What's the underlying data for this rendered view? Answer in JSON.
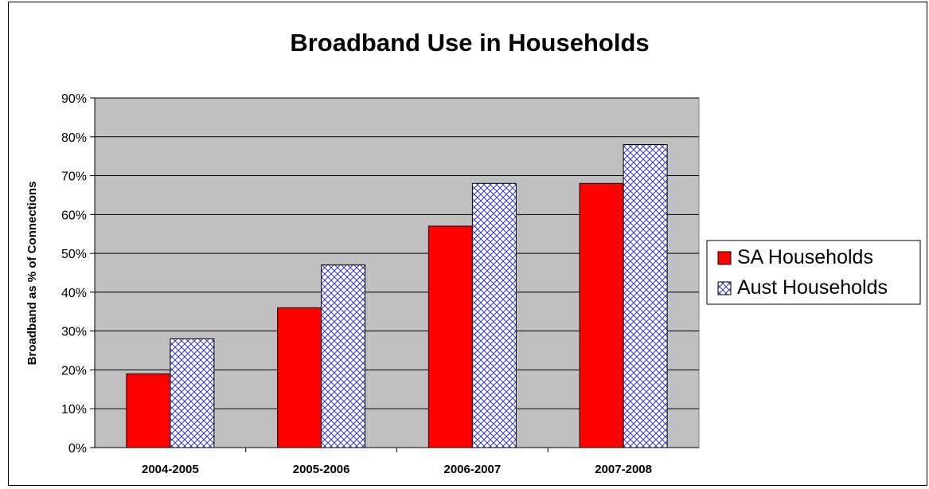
{
  "chart_data": {
    "type": "bar",
    "title": "Broadband Use in Households",
    "xlabel": "",
    "ylabel": "Broadband as % of Connections",
    "categories": [
      "2004-2005",
      "2005-2006",
      "2006-2007",
      "2007-2008"
    ],
    "series": [
      {
        "name": "SA Households",
        "values": [
          19,
          36,
          57,
          68
        ],
        "color": "#ff0000",
        "fill": "solid"
      },
      {
        "name": "Aust Households",
        "values": [
          28,
          47,
          68,
          78
        ],
        "color": "#3333cc",
        "fill": "crosshatch"
      }
    ],
    "ylim": [
      0,
      90
    ],
    "ytick_step": 10,
    "yticks": [
      "0%",
      "10%",
      "20%",
      "30%",
      "40%",
      "50%",
      "60%",
      "70%",
      "80%",
      "90%"
    ],
    "grid": true,
    "plot_background": "#c0c0c0",
    "legend_position": "right"
  }
}
